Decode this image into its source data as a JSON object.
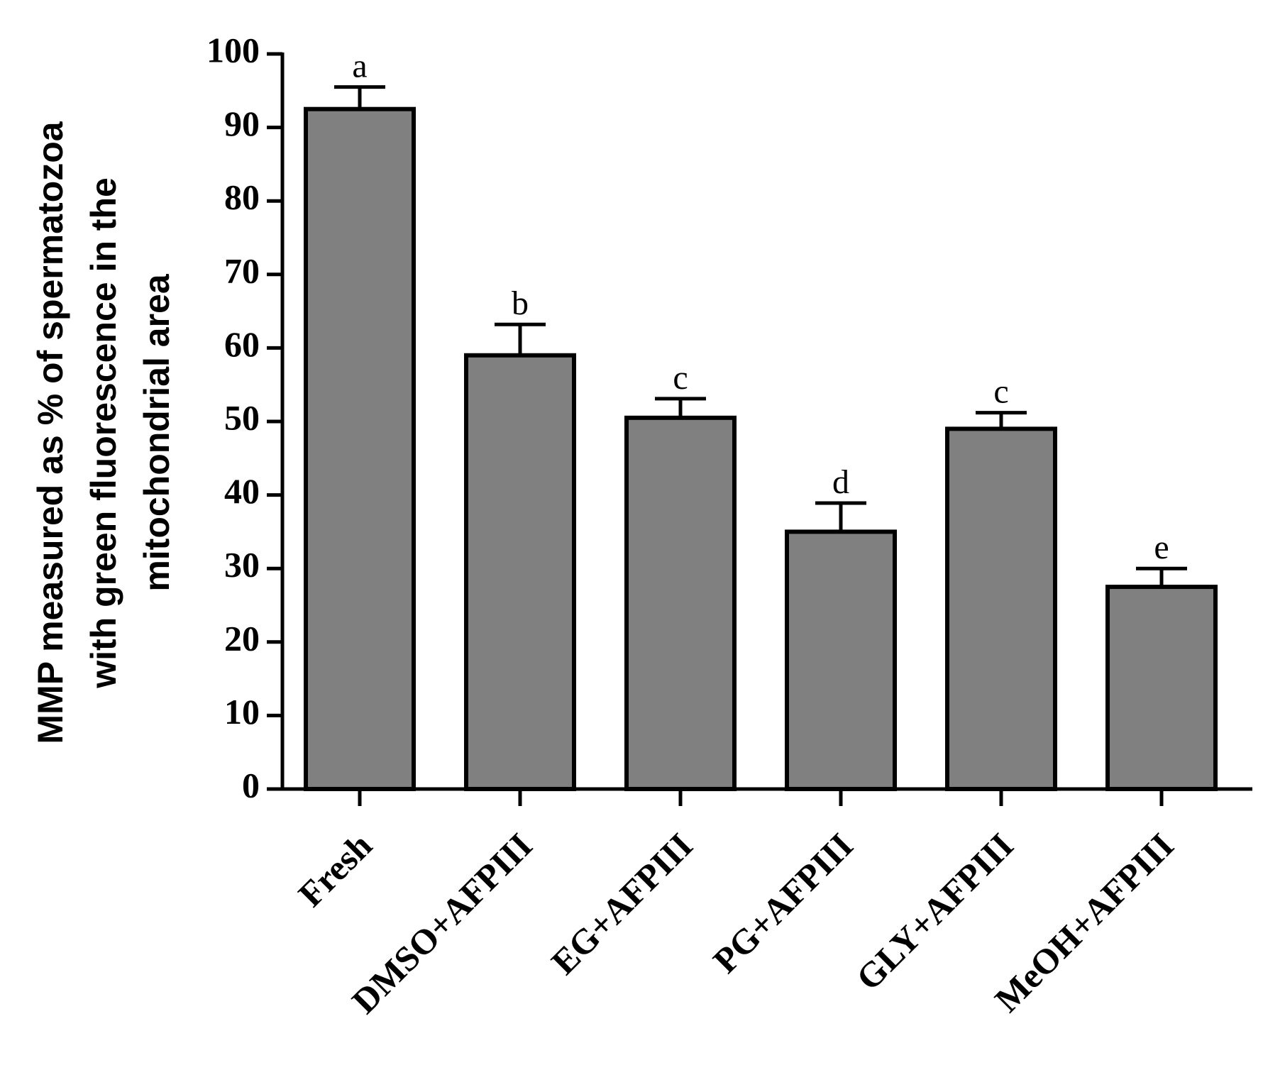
{
  "chart_data": {
    "type": "bar",
    "title": "",
    "xlabel": "",
    "ylabel_lines": [
      "MMP measured as % of spermatozoa",
      "with green fluorescence in the",
      "mitochondrial area"
    ],
    "categories": [
      "Fresh",
      "DMSO+AFPIII",
      "EG+AFPIII",
      "PG+AFPIII",
      "GLY+AFPIII",
      "MeOH+AFPIII"
    ],
    "values": [
      92.5,
      59,
      50.5,
      35,
      49,
      27.5
    ],
    "errors": [
      3,
      4.2,
      2.6,
      3.9,
      2.2,
      2.5
    ],
    "significance": [
      "a",
      "b",
      "c",
      "d",
      "c",
      "e"
    ],
    "ylim": [
      0,
      100
    ],
    "yticks": [
      "0",
      "10",
      "20",
      "30",
      "40",
      "50",
      "60",
      "70",
      "80",
      "90",
      "100"
    ],
    "colors": {
      "bar": "#808080",
      "edge": "#000000"
    }
  }
}
